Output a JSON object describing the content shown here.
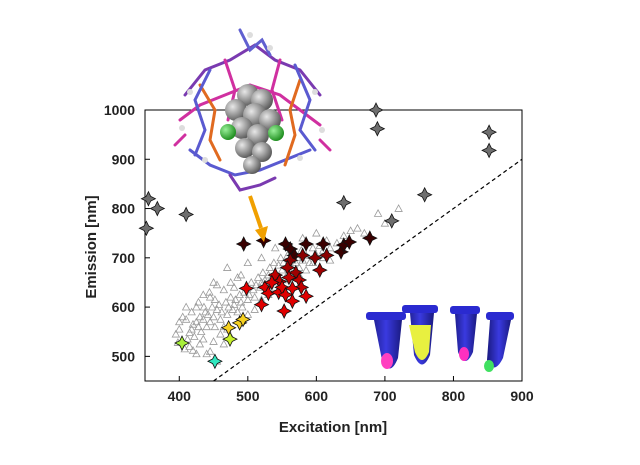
{
  "chart_data": {
    "type": "scatter",
    "title": "",
    "xlabel": "Excitation [nm]",
    "ylabel": "Emission [nm]",
    "xlim": [
      350,
      900
    ],
    "ylim": [
      450,
      1000
    ],
    "xticks": [
      400,
      500,
      600,
      700,
      800,
      900
    ],
    "yticks": [
      500,
      600,
      700,
      800,
      900,
      1000
    ],
    "grid": false,
    "diagonal_reference_line": {
      "style": "dashed",
      "from": [
        450,
        450
      ],
      "to": [
        900,
        900
      ]
    },
    "series": [
      {
        "name": "Background (gray triangles)",
        "marker": "open-triangle",
        "color": "#9a9a9a",
        "points": [
          [
            408,
            515
          ],
          [
            412,
            535
          ],
          [
            415,
            548
          ],
          [
            418,
            555
          ],
          [
            420,
            565
          ],
          [
            422,
            540
          ],
          [
            425,
            570
          ],
          [
            428,
            560
          ],
          [
            430,
            580
          ],
          [
            432,
            550
          ],
          [
            435,
            575
          ],
          [
            438,
            590
          ],
          [
            440,
            560
          ],
          [
            442,
            585
          ],
          [
            445,
            570
          ],
          [
            448,
            600
          ],
          [
            450,
            580
          ],
          [
            452,
            560
          ],
          [
            455,
            595
          ],
          [
            458,
            605
          ],
          [
            460,
            575
          ],
          [
            462,
            590
          ],
          [
            465,
            560
          ],
          [
            468,
            610
          ],
          [
            470,
            585
          ],
          [
            472,
            600
          ],
          [
            475,
            620
          ],
          [
            478,
            595
          ],
          [
            480,
            605
          ],
          [
            482,
            615
          ],
          [
            485,
            590
          ],
          [
            488,
            625
          ],
          [
            490,
            610
          ],
          [
            492,
            600
          ],
          [
            495,
            630
          ],
          [
            498,
            640
          ],
          [
            500,
            615
          ],
          [
            502,
            625
          ],
          [
            505,
            650
          ],
          [
            508,
            635
          ],
          [
            510,
            620
          ],
          [
            512,
            645
          ],
          [
            515,
            660
          ],
          [
            518,
            640
          ],
          [
            520,
            650
          ],
          [
            522,
            670
          ],
          [
            525,
            655
          ],
          [
            528,
            645
          ],
          [
            530,
            665
          ],
          [
            532,
            680
          ],
          [
            535,
            660
          ],
          [
            538,
            690
          ],
          [
            540,
            670
          ],
          [
            542,
            655
          ],
          [
            545,
            685
          ],
          [
            548,
            700
          ],
          [
            550,
            675
          ],
          [
            552,
            690
          ],
          [
            555,
            660
          ],
          [
            558,
            705
          ],
          [
            560,
            685
          ],
          [
            562,
            670
          ],
          [
            565,
            695
          ],
          [
            568,
            710
          ],
          [
            570,
            690
          ],
          [
            572,
            700
          ],
          [
            575,
            680
          ],
          [
            578,
            715
          ],
          [
            580,
            695
          ],
          [
            585,
            705
          ],
          [
            590,
            690
          ],
          [
            595,
            720
          ],
          [
            600,
            705
          ],
          [
            605,
            725
          ],
          [
            610,
            715
          ],
          [
            615,
            735
          ],
          [
            620,
            720
          ],
          [
            630,
            730
          ],
          [
            640,
            745
          ],
          [
            650,
            755
          ],
          [
            400,
            570
          ],
          [
            410,
            600
          ],
          [
            405,
            580
          ],
          [
            445,
            620
          ],
          [
            455,
            645
          ],
          [
            465,
            635
          ],
          [
            475,
            650
          ],
          [
            485,
            660
          ],
          [
            500,
            690
          ],
          [
            480,
            640
          ],
          [
            395,
            545
          ],
          [
            430,
            525
          ],
          [
            440,
            505
          ],
          [
            460,
            545
          ],
          [
            470,
            555
          ],
          [
            418,
            590
          ],
          [
            428,
            610
          ],
          [
            436,
            600
          ],
          [
            444,
            630
          ],
          [
            452,
            615
          ],
          [
            415,
            520
          ],
          [
            425,
            505
          ],
          [
            435,
            535
          ],
          [
            450,
            530
          ],
          [
            465,
            525
          ],
          [
            475,
            540
          ],
          [
            490,
            570
          ],
          [
            500,
            585
          ],
          [
            510,
            595
          ],
          [
            520,
            615
          ],
          [
            530,
            625
          ],
          [
            540,
            640
          ],
          [
            550,
            645
          ],
          [
            560,
            655
          ],
          [
            575,
            665
          ],
          [
            585,
            675
          ],
          [
            595,
            690
          ],
          [
            610,
            700
          ],
          [
            620,
            695
          ],
          [
            700,
            770
          ],
          [
            660,
            760
          ],
          [
            670,
            750
          ],
          [
            720,
            800
          ],
          [
            690,
            790
          ],
          [
            600,
            750
          ],
          [
            580,
            740
          ],
          [
            540,
            720
          ],
          [
            560,
            710
          ],
          [
            520,
            700
          ],
          [
            490,
            665
          ],
          [
            470,
            680
          ],
          [
            450,
            650
          ],
          [
            435,
            625
          ],
          [
            425,
            600
          ],
          [
            410,
            575
          ],
          [
            400,
            555
          ],
          [
            398,
            528
          ],
          [
            420,
            512
          ],
          [
            445,
            510
          ],
          [
            455,
            490
          ]
        ]
      },
      {
        "name": "Highlighted samples",
        "marker": "filled-star",
        "points": [
          {
            "x": 352,
            "y": 760,
            "color": "#6e6e6e"
          },
          {
            "x": 355,
            "y": 820,
            "color": "#6e6e6e"
          },
          {
            "x": 368,
            "y": 800,
            "color": "#6e6e6e"
          },
          {
            "x": 410,
            "y": 788,
            "color": "#6e6e6e"
          },
          {
            "x": 640,
            "y": 812,
            "color": "#6e6e6e"
          },
          {
            "x": 687,
            "y": 1000,
            "color": "#6e6e6e"
          },
          {
            "x": 689,
            "y": 962,
            "color": "#6e6e6e"
          },
          {
            "x": 710,
            "y": 775,
            "color": "#6e6e6e"
          },
          {
            "x": 758,
            "y": 828,
            "color": "#6e6e6e"
          },
          {
            "x": 852,
            "y": 955,
            "color": "#6e6e6e"
          },
          {
            "x": 852,
            "y": 918,
            "color": "#6e6e6e"
          },
          {
            "x": 494,
            "y": 728,
            "color": "#3a0000"
          },
          {
            "x": 523,
            "y": 735,
            "color": "#3a0000"
          },
          {
            "x": 555,
            "y": 728,
            "color": "#3a0000"
          },
          {
            "x": 562,
            "y": 718,
            "color": "#3a0000"
          },
          {
            "x": 568,
            "y": 705,
            "color": "#3a0000"
          },
          {
            "x": 585,
            "y": 728,
            "color": "#3a0000"
          },
          {
            "x": 610,
            "y": 728,
            "color": "#3a0000"
          },
          {
            "x": 636,
            "y": 712,
            "color": "#3a0000"
          },
          {
            "x": 640,
            "y": 726,
            "color": "#3a0000"
          },
          {
            "x": 648,
            "y": 732,
            "color": "#3a0000"
          },
          {
            "x": 678,
            "y": 740,
            "color": "#3a0000"
          },
          {
            "x": 562,
            "y": 695,
            "color": "#8a0000"
          },
          {
            "x": 580,
            "y": 705,
            "color": "#8a0000"
          },
          {
            "x": 598,
            "y": 700,
            "color": "#8a0000"
          },
          {
            "x": 615,
            "y": 705,
            "color": "#8a0000"
          },
          {
            "x": 558,
            "y": 680,
            "color": "#a00000"
          },
          {
            "x": 570,
            "y": 670,
            "color": "#a00000"
          },
          {
            "x": 605,
            "y": 675,
            "color": "#a00000"
          },
          {
            "x": 540,
            "y": 665,
            "color": "#c00000"
          },
          {
            "x": 546,
            "y": 652,
            "color": "#c00000"
          },
          {
            "x": 560,
            "y": 660,
            "color": "#c00000"
          },
          {
            "x": 575,
            "y": 655,
            "color": "#c00000"
          },
          {
            "x": 578,
            "y": 640,
            "color": "#c00000"
          },
          {
            "x": 498,
            "y": 638,
            "color": "#e00000"
          },
          {
            "x": 525,
            "y": 640,
            "color": "#e00000"
          },
          {
            "x": 530,
            "y": 628,
            "color": "#e00000"
          },
          {
            "x": 535,
            "y": 650,
            "color": "#e00000"
          },
          {
            "x": 545,
            "y": 630,
            "color": "#e00000"
          },
          {
            "x": 550,
            "y": 640,
            "color": "#e00000"
          },
          {
            "x": 555,
            "y": 625,
            "color": "#e00000"
          },
          {
            "x": 565,
            "y": 638,
            "color": "#e00000"
          },
          {
            "x": 565,
            "y": 612,
            "color": "#e00000"
          },
          {
            "x": 585,
            "y": 622,
            "color": "#e00000"
          },
          {
            "x": 520,
            "y": 605,
            "color": "#e00000"
          },
          {
            "x": 553,
            "y": 592,
            "color": "#e00000"
          },
          {
            "x": 488,
            "y": 568,
            "color": "#f5d020"
          },
          {
            "x": 493,
            "y": 575,
            "color": "#f5d020"
          },
          {
            "x": 472,
            "y": 558,
            "color": "#f5d020"
          },
          {
            "x": 474,
            "y": 535,
            "color": "#c6f02a"
          },
          {
            "x": 404,
            "y": 527,
            "color": "#a8f03a"
          },
          {
            "x": 452,
            "y": 490,
            "color": "#30e8c0"
          }
        ]
      }
    ],
    "annotations": [
      {
        "type": "arrow",
        "color": "#f0a000",
        "description": "arrow from molecular structure to dark red cluster"
      },
      {
        "type": "image",
        "description": "3D molecular cluster structure"
      },
      {
        "type": "image",
        "description": "four fluorescent vials (pink, yellow, pink, green)"
      }
    ]
  }
}
